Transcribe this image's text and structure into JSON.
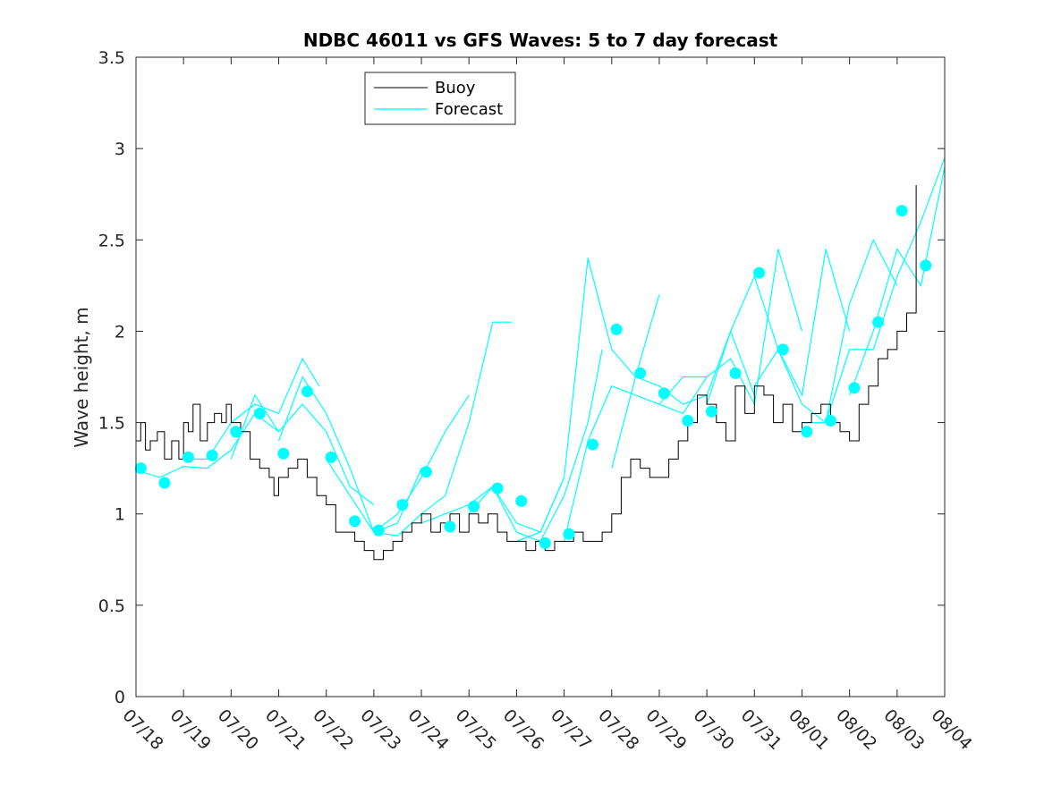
{
  "chart_data": {
    "type": "line",
    "title": "NDBC 46011 vs GFS Waves: 5 to 7 day forecast",
    "xlabel": "",
    "ylabel": "Wave height, m",
    "xlim": [
      "07/18",
      "08/04"
    ],
    "x_tick_labels": [
      "07/18",
      "07/19",
      "07/20",
      "07/21",
      "07/22",
      "07/23",
      "07/24",
      "07/25",
      "07/26",
      "07/27",
      "07/28",
      "07/29",
      "07/30",
      "07/31",
      "08/01",
      "08/02",
      "08/03",
      "08/04"
    ],
    "ylim": [
      0,
      3.5
    ],
    "y_ticks": [
      0,
      0.5,
      1,
      1.5,
      2,
      2.5,
      3,
      3.5
    ],
    "y_tick_labels": [
      "0",
      "0.5",
      "1",
      "1.5",
      "2",
      "2.5",
      "3",
      "3.5"
    ],
    "grid": false,
    "legend": {
      "position": "top-left-center",
      "entries": [
        "Buoy",
        "Forecast"
      ]
    },
    "colors": {
      "buoy": "#000000",
      "forecast": "#00ffff",
      "marker": "#00ffff",
      "axis": "#262626"
    },
    "series": [
      {
        "name": "Buoy",
        "days": [
          0,
          0.1,
          0.2,
          0.3,
          0.45,
          0.6,
          0.75,
          0.9,
          1.0,
          1.1,
          1.2,
          1.35,
          1.5,
          1.65,
          1.8,
          1.9,
          2.0,
          2.2,
          2.4,
          2.6,
          2.8,
          2.9,
          3.0,
          3.2,
          3.4,
          3.6,
          3.8,
          4.0,
          4.2,
          4.4,
          4.6,
          4.8,
          5.0,
          5.2,
          5.4,
          5.6,
          5.8,
          6.0,
          6.2,
          6.4,
          6.6,
          6.8,
          7.0,
          7.2,
          7.4,
          7.6,
          7.8,
          8.0,
          8.2,
          8.4,
          8.6,
          8.8,
          9.0,
          9.2,
          9.4,
          9.6,
          9.8,
          10.0,
          10.2,
          10.4,
          10.6,
          10.8,
          11.0,
          11.2,
          11.4,
          11.6,
          11.8,
          12.0,
          12.2,
          12.4,
          12.6,
          12.8,
          13.0,
          13.2,
          13.4,
          13.6,
          13.8,
          14.0,
          14.2,
          14.4,
          14.6,
          14.8,
          15.0,
          15.2,
          15.4,
          15.6,
          15.8,
          16.0,
          16.2,
          16.4
        ],
        "values": [
          1.4,
          1.5,
          1.35,
          1.4,
          1.45,
          1.3,
          1.4,
          1.3,
          1.5,
          1.45,
          1.6,
          1.4,
          1.5,
          1.55,
          1.5,
          1.6,
          1.5,
          1.45,
          1.3,
          1.25,
          1.2,
          1.1,
          1.2,
          1.25,
          1.3,
          1.2,
          1.1,
          1.05,
          0.9,
          0.9,
          0.85,
          0.8,
          0.75,
          0.8,
          0.85,
          0.9,
          0.95,
          1.0,
          0.9,
          0.95,
          1.0,
          0.9,
          1.0,
          0.95,
          1.0,
          0.9,
          0.85,
          0.85,
          0.8,
          0.85,
          0.8,
          0.85,
          0.85,
          0.9,
          0.85,
          0.85,
          0.9,
          1.0,
          1.2,
          1.3,
          1.25,
          1.2,
          1.2,
          1.3,
          1.4,
          1.5,
          1.65,
          1.6,
          1.5,
          1.4,
          1.7,
          1.55,
          1.7,
          1.65,
          1.5,
          1.6,
          1.45,
          1.5,
          1.55,
          1.6,
          1.5,
          1.45,
          1.4,
          1.6,
          1.7,
          1.85,
          1.9,
          2.0,
          2.1,
          2.8
        ]
      },
      {
        "name": "Forecast",
        "runs": [
          {
            "days": [
              0,
              0.5,
              1,
              1.5,
              2,
              2.5,
              3.0
            ],
            "values": [
              1.24,
              1.2,
              1.26,
              1.25,
              1.35,
              1.55,
              1.45
            ]
          },
          {
            "days": [
              1,
              1.5,
              2,
              2.5,
              3,
              3.5,
              3.85
            ],
            "values": [
              1.3,
              1.3,
              1.5,
              1.6,
              1.55,
              1.85,
              1.7
            ]
          },
          {
            "days": [
              2,
              2.5,
              3,
              3.5,
              4,
              4.5,
              5.0
            ],
            "values": [
              1.3,
              1.65,
              1.45,
              1.6,
              1.45,
              1.15,
              1.05
            ]
          },
          {
            "days": [
              3,
              3.5,
              4,
              4.5,
              5,
              5.5,
              6.0
            ],
            "values": [
              1.4,
              1.75,
              1.55,
              1.25,
              0.9,
              0.95,
              1.25
            ]
          },
          {
            "days": [
              4,
              4.5,
              5,
              5.5,
              6,
              6.5,
              7.0
            ],
            "values": [
              1.3,
              1.1,
              0.9,
              1.0,
              1.2,
              1.45,
              1.65
            ]
          },
          {
            "days": [
              5,
              5.5,
              6,
              6.5,
              7,
              7.5,
              7.9
            ],
            "values": [
              0.9,
              0.88,
              1.0,
              1.1,
              1.5,
              2.05,
              2.05
            ]
          },
          {
            "days": [
              6,
              6.5,
              7,
              7.5,
              8,
              8.5,
              9.0
            ],
            "values": [
              0.95,
              1.0,
              1.05,
              1.15,
              0.95,
              0.9,
              1.2
            ]
          },
          {
            "days": [
              7,
              7.5,
              8,
              8.5,
              9,
              9.5,
              9.8
            ],
            "values": [
              1.0,
              1.15,
              0.9,
              0.85,
              1.1,
              1.5,
              1.9
            ]
          },
          {
            "days": [
              8,
              8.5,
              9,
              9.5,
              10,
              10.5,
              11.0
            ],
            "values": [
              0.85,
              0.9,
              1.2,
              2.4,
              1.9,
              1.75,
              2.2
            ]
          },
          {
            "days": [
              9,
              9.5,
              10,
              10.5,
              11,
              11.5,
              12.0
            ],
            "values": [
              0.85,
              1.4,
              1.7,
              1.65,
              1.6,
              1.75,
              1.75
            ]
          },
          {
            "days": [
              10,
              10.5,
              11,
              11.5,
              12,
              12.5,
              13.0
            ],
            "values": [
              1.25,
              1.75,
              1.7,
              1.6,
              1.65,
              2.0,
              1.65
            ]
          },
          {
            "days": [
              11,
              11.5,
              12,
              12.5,
              13,
              13.5,
              14.0
            ],
            "values": [
              1.6,
              1.55,
              1.75,
              1.85,
              1.6,
              2.45,
              2.0
            ]
          },
          {
            "days": [
              12,
              12.5,
              13,
              13.5,
              14,
              14.5,
              15.0
            ],
            "values": [
              1.6,
              2.0,
              2.3,
              1.9,
              1.65,
              2.45,
              2.0
            ]
          },
          {
            "days": [
              13,
              13.5,
              14,
              14.5,
              15,
              15.5,
              16.0
            ],
            "values": [
              1.7,
              1.9,
              1.6,
              1.5,
              2.15,
              2.5,
              2.25
            ]
          },
          {
            "days": [
              14,
              14.5,
              15,
              15.5,
              16,
              16.5,
              17.0
            ],
            "values": [
              1.5,
              1.5,
              1.9,
              1.9,
              2.3,
              2.6,
              2.95
            ]
          },
          {
            "days": [
              15,
              15.5,
              16,
              16.5,
              17.0
            ],
            "values": [
              1.65,
              2.0,
              2.45,
              2.25,
              2.9
            ]
          }
        ]
      }
    ],
    "markers": {
      "days": [
        0.1,
        0.6,
        1.1,
        1.6,
        2.1,
        2.6,
        3.1,
        3.6,
        4.1,
        4.6,
        5.1,
        5.6,
        6.1,
        6.6,
        7.1,
        7.6,
        8.1,
        8.6,
        9.1,
        9.6,
        10.1,
        10.6,
        11.1,
        11.6,
        12.1,
        12.6,
        13.1,
        13.6,
        14.1,
        14.6,
        15.1,
        15.6,
        16.1
      ],
      "values": [
        1.25,
        1.17,
        1.31,
        1.32,
        1.45,
        1.55,
        1.33,
        1.67,
        1.31,
        0.96,
        0.91,
        1.05,
        1.23,
        0.93,
        1.04,
        1.14,
        1.07,
        0.84,
        0.89,
        1.38,
        2.01,
        1.77,
        1.66,
        1.51,
        1.56,
        1.77,
        2.32,
        1.9,
        1.45,
        1.51,
        1.69,
        2.05,
        2.66
      ]
    },
    "extra_markers": {
      "days": [
        16.6
      ],
      "values": [
        2.36
      ]
    }
  }
}
